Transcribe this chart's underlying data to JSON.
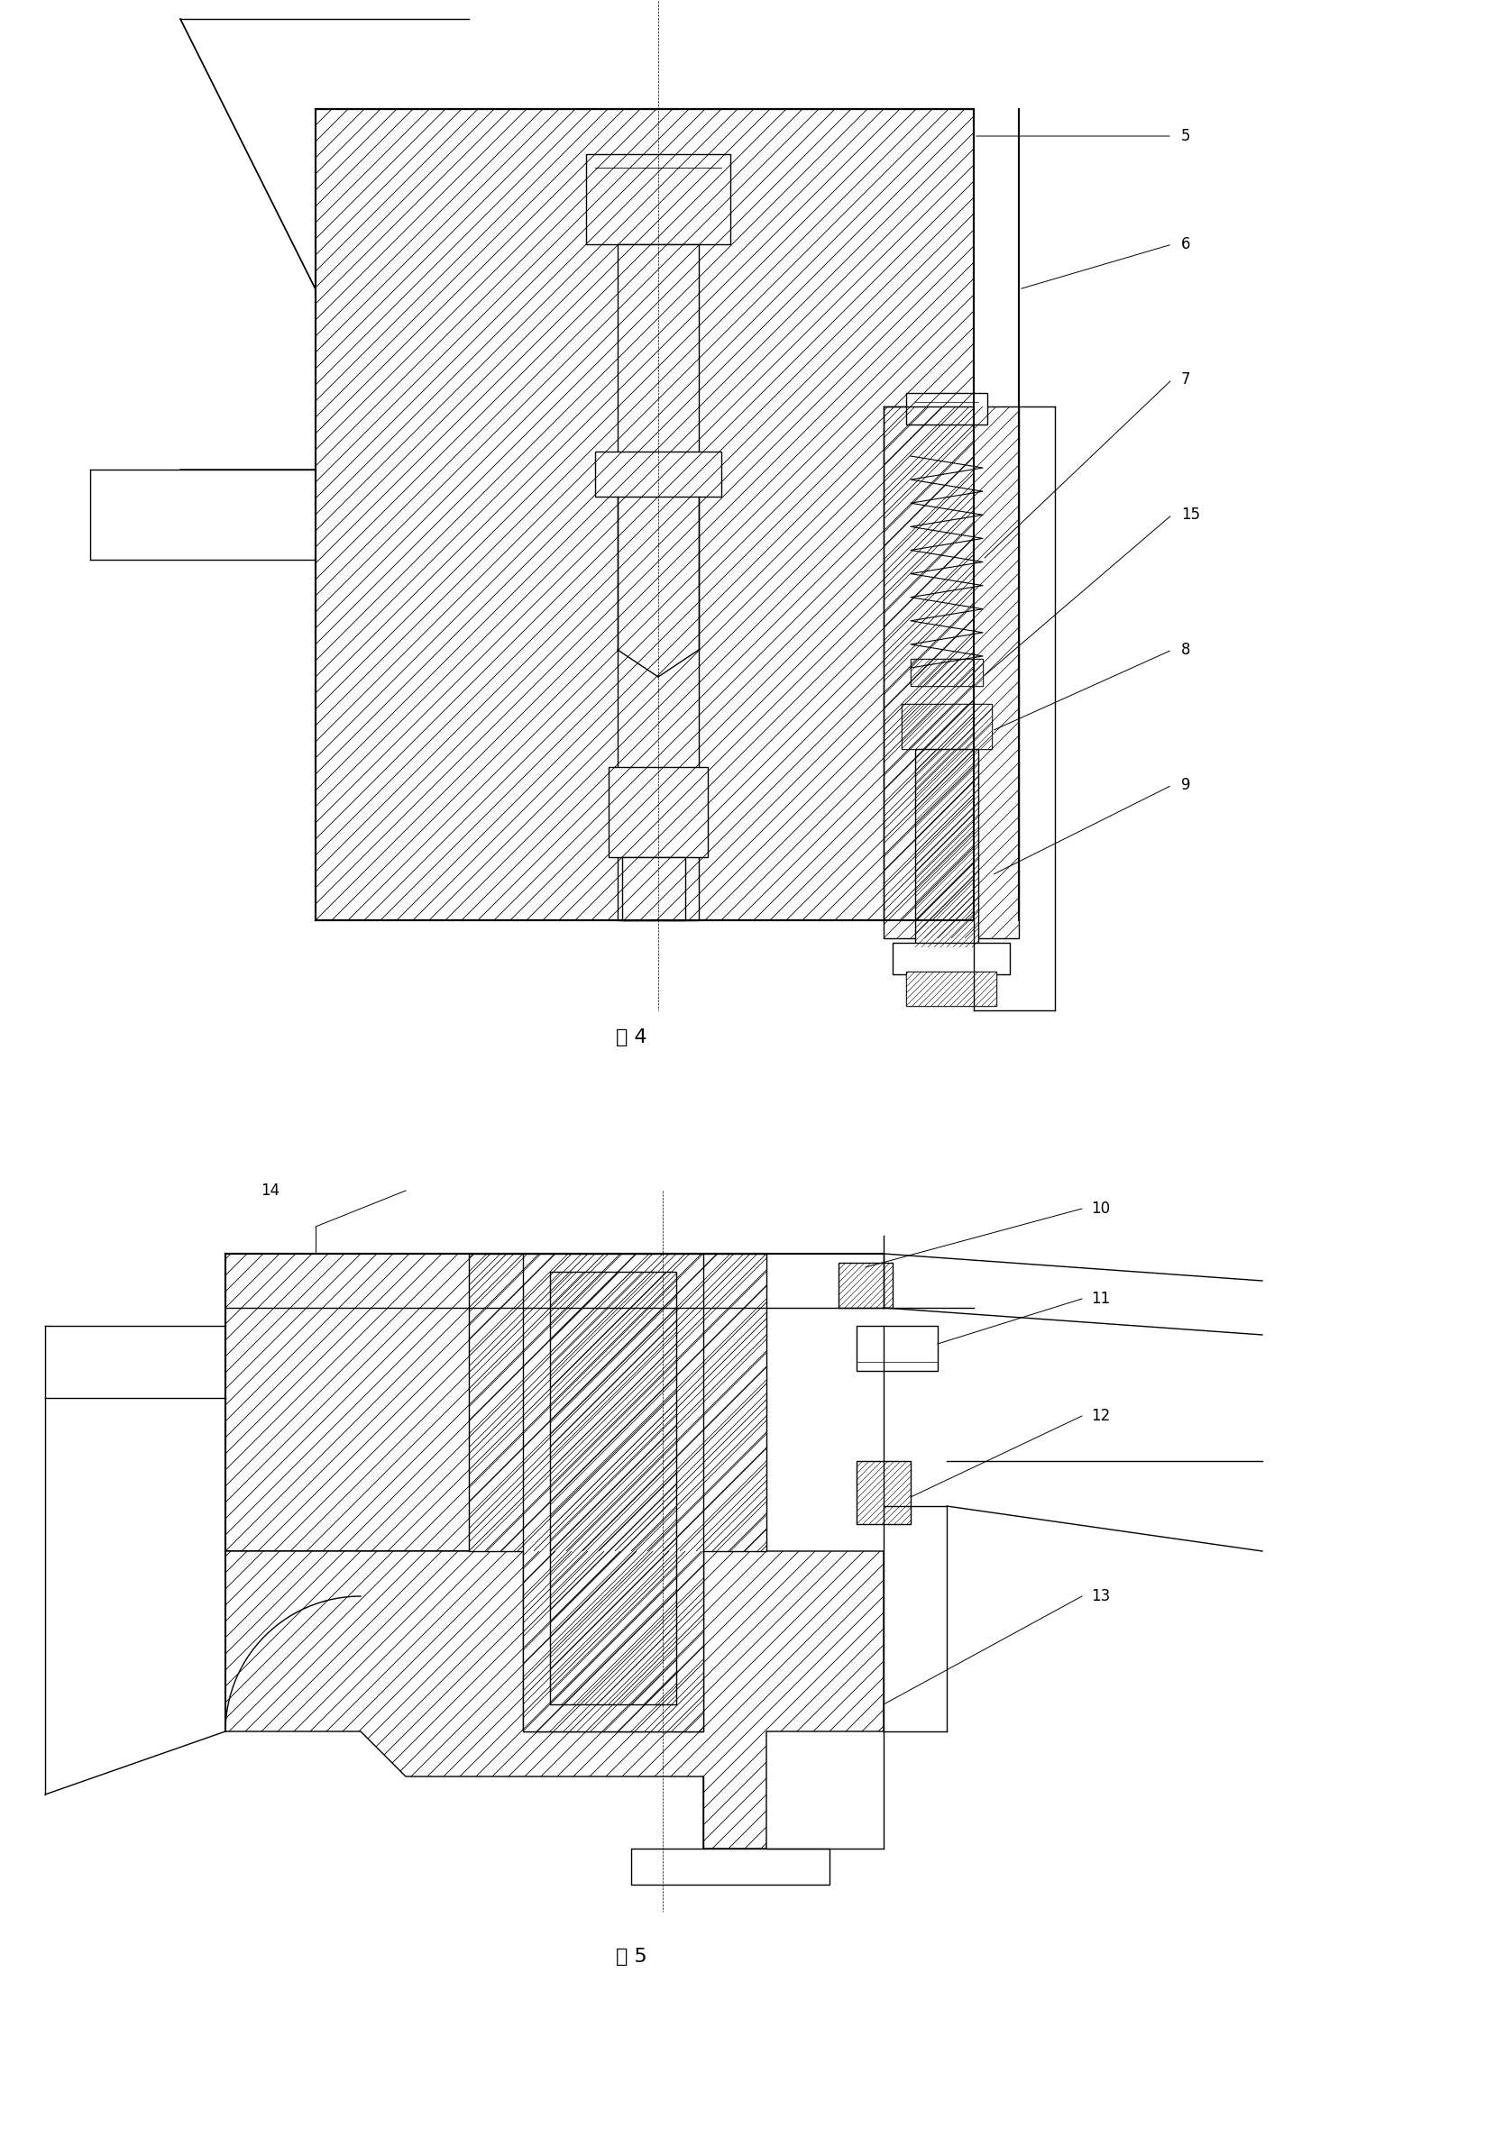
{
  "fig_width": 16.58,
  "fig_height": 23.71,
  "bg_color": "#ffffff",
  "line_color": "#000000",
  "hatch_color": "#000000",
  "title4": "图 4",
  "title5": "图 5",
  "labels_fig4": [
    "5",
    "6",
    "7",
    "15",
    "8",
    "9"
  ],
  "labels_fig5": [
    "14",
    "10",
    "11",
    "12",
    "13"
  ]
}
